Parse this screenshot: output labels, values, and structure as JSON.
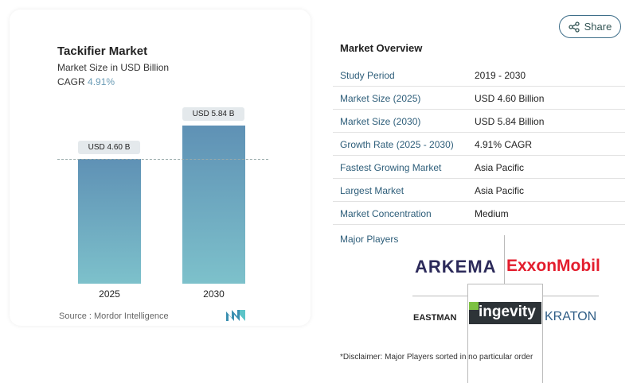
{
  "chart_card": {
    "title": "Tackifier Market",
    "subtitle": "Market Size in USD Billion",
    "cagr_label": "CAGR",
    "cagr_value": "4.91%",
    "source": "Source :  Mordor Intelligence"
  },
  "chart_data": {
    "type": "bar",
    "categories": [
      "2025",
      "2030"
    ],
    "values": [
      4.6,
      5.84
    ],
    "data_labels": [
      "USD 4.60 B",
      "USD 5.84 B"
    ],
    "title": "Tackifier Market",
    "ylabel": "Market Size in USD Billion",
    "ylim": [
      0,
      6
    ],
    "grid": false,
    "colors": [
      "#5f91b5",
      "#7dc1cb"
    ]
  },
  "share": {
    "label": "Share",
    "icon": "share-icon"
  },
  "overview": {
    "title": "Market Overview",
    "rows": [
      {
        "k": "Study Period",
        "v": "2019 - 2030"
      },
      {
        "k": "Market Size (2025)",
        "v": "USD 4.60 Billion"
      },
      {
        "k": "Market Size (2030)",
        "v": "USD 5.84 Billion"
      },
      {
        "k": "Growth Rate (2025 - 2030)",
        "v": "4.91% CAGR"
      },
      {
        "k": "Fastest Growing Market",
        "v": "Asia Pacific"
      },
      {
        "k": "Largest Market",
        "v": "Asia Pacific"
      },
      {
        "k": "Market Concentration",
        "v": "Medium"
      }
    ],
    "major_players_label": "Major Players",
    "players": [
      "ARKEMA",
      "ExxonMobil",
      "EASTMAN",
      "ingevity",
      "KRATON"
    ],
    "disclaimer": "*Disclaimer: Major Players sorted in no particular order"
  }
}
